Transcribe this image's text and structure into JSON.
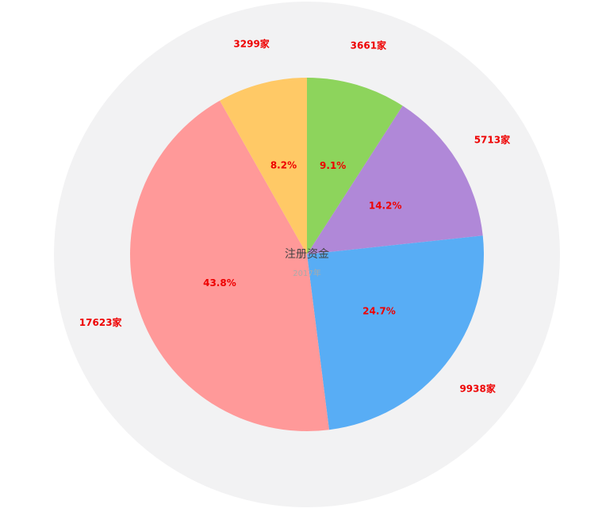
{
  "chart_data": {
    "type": "pie",
    "title": "注册资金",
    "subtitle": "2017年",
    "categories": [
      null,
      null,
      null,
      null,
      null
    ],
    "values": [
      3661,
      5713,
      9938,
      17623,
      3299
    ],
    "value_labels": [
      "3661家",
      "5713家",
      "9938家",
      "17623家",
      "3299家"
    ],
    "percent_labels": [
      "9.1%",
      "14.2%",
      "24.7%",
      "43.8%",
      "8.2%"
    ],
    "colors": [
      "#8dd45c",
      "#b088d8",
      "#58adf5",
      "#ff9999",
      "#ffc966"
    ],
    "label_color": "#ee0000"
  }
}
